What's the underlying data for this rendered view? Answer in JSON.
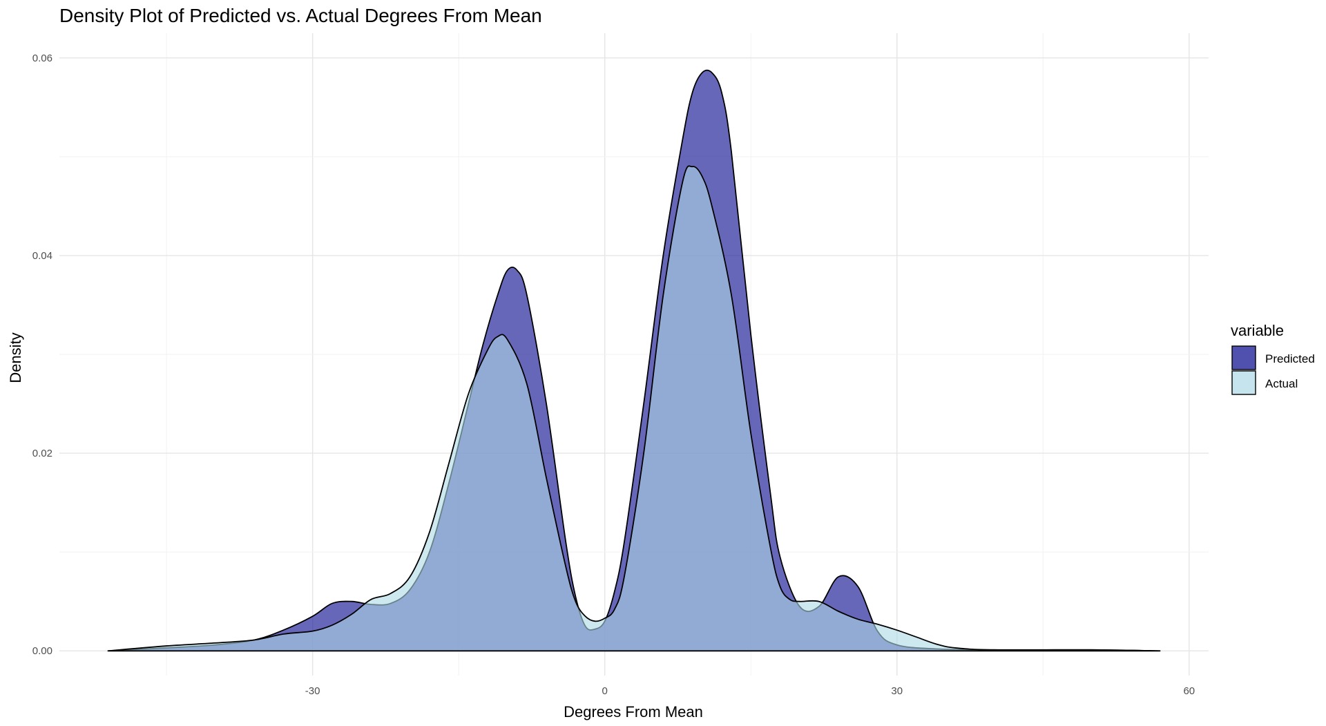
{
  "chart_data": {
    "type": "area",
    "title": "Density Plot of Predicted vs. Actual Degrees From Mean",
    "xlabel": "Degrees From Mean",
    "ylabel": "Density",
    "xlim": [
      -56,
      62
    ],
    "ylim": [
      -0.0025,
      0.0625
    ],
    "x_ticks": [
      -30,
      0,
      30,
      60
    ],
    "x_tick_labels": [
      "-30",
      "0",
      "30",
      "60"
    ],
    "y_ticks": [
      0,
      0.02,
      0.04,
      0.06
    ],
    "y_tick_labels": [
      "0.00",
      "0.02",
      "0.04",
      "0.06"
    ],
    "grid": true,
    "legend": {
      "title": "variable",
      "position": "right",
      "entries": [
        "Predicted",
        "Actual"
      ]
    },
    "series": [
      {
        "name": "Predicted",
        "color": "#1f1f99",
        "opacity": 0.68,
        "x": [
          -51,
          -45,
          -40,
          -36,
          -33,
          -30,
          -28,
          -26,
          -24,
          -22,
          -20,
          -18,
          -16,
          -14,
          -12.5,
          -11,
          -10,
          -9,
          -8,
          -6,
          -4,
          -3,
          -2,
          -1,
          0,
          1,
          2,
          4,
          6,
          8,
          9,
          10,
          11,
          12,
          13,
          15,
          17,
          18,
          20,
          22,
          24,
          26,
          28,
          30,
          34,
          40,
          50,
          57
        ],
        "y": [
          0,
          0.0003,
          0.0006,
          0.0011,
          0.0021,
          0.0035,
          0.0048,
          0.005,
          0.0047,
          0.0048,
          0.0062,
          0.01,
          0.017,
          0.025,
          0.031,
          0.036,
          0.0385,
          0.0385,
          0.036,
          0.025,
          0.011,
          0.0055,
          0.0025,
          0.0022,
          0.003,
          0.006,
          0.011,
          0.025,
          0.04,
          0.0518,
          0.0565,
          0.0585,
          0.0585,
          0.0565,
          0.0505,
          0.032,
          0.016,
          0.0095,
          0.0045,
          0.0045,
          0.0075,
          0.0065,
          0.002,
          0.0006,
          0.0002,
          0.0001,
          0.0001,
          0
        ]
      },
      {
        "name": "Actual",
        "color": "#add8e6",
        "opacity": 0.6,
        "x": [
          -51,
          -45,
          -40,
          -36,
          -33,
          -30,
          -28,
          -26,
          -24,
          -22,
          -20,
          -18,
          -16,
          -14,
          -12,
          -11,
          -10,
          -8,
          -6,
          -4,
          -3,
          -2,
          -1,
          0,
          1,
          2,
          4,
          6,
          8,
          9,
          10,
          11,
          13,
          15,
          17,
          18,
          19,
          20,
          22,
          24,
          26,
          28,
          30,
          32,
          34,
          36,
          40,
          50,
          57
        ],
        "y": [
          0,
          0.0005,
          0.0008,
          0.0011,
          0.0017,
          0.002,
          0.0026,
          0.0037,
          0.0052,
          0.0058,
          0.0075,
          0.012,
          0.019,
          0.026,
          0.0305,
          0.0318,
          0.0315,
          0.027,
          0.0175,
          0.0085,
          0.005,
          0.0035,
          0.003,
          0.0033,
          0.0042,
          0.0075,
          0.02,
          0.036,
          0.0475,
          0.049,
          0.048,
          0.045,
          0.036,
          0.022,
          0.0105,
          0.0065,
          0.0052,
          0.005,
          0.005,
          0.004,
          0.0032,
          0.0027,
          0.0021,
          0.0014,
          0.0007,
          0.0003,
          0.0001,
          0.0001,
          0
        ]
      }
    ]
  }
}
